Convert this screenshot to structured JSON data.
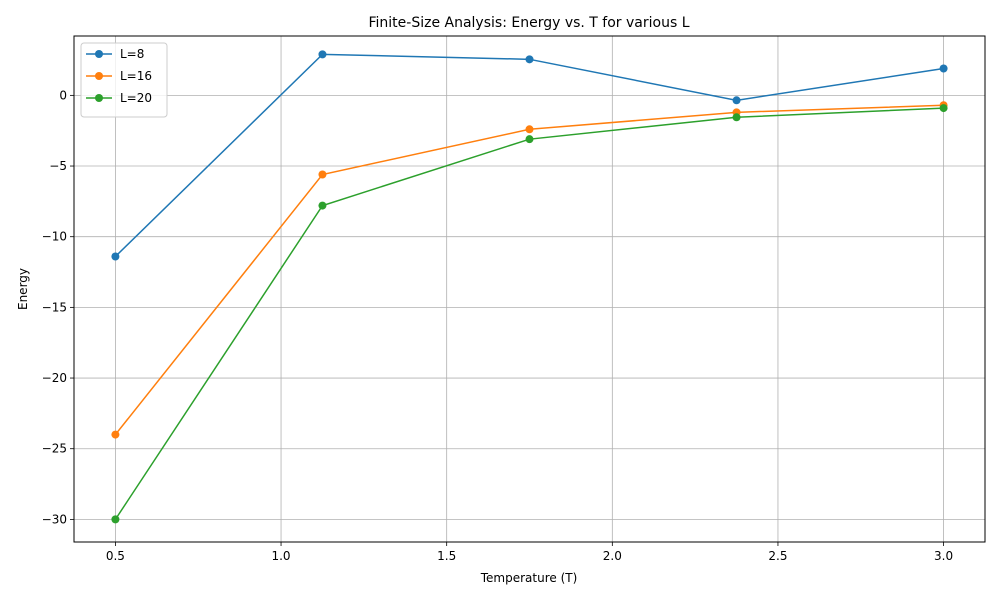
{
  "chart_data": {
    "type": "line",
    "title": "Finite-Size Analysis: Energy vs. T for various L",
    "xlabel": "Temperature (T)",
    "ylabel": "Energy",
    "xlim": [
      0.375,
      3.125
    ],
    "ylim": [
      -31.6,
      4.2
    ],
    "xticks": [
      0.5,
      1.0,
      1.5,
      2.0,
      2.5,
      3.0
    ],
    "xtick_labels": [
      "0.5",
      "1.0",
      "1.5",
      "2.0",
      "2.5",
      "3.0"
    ],
    "yticks": [
      0,
      -5,
      -10,
      -15,
      -20,
      -25,
      -30
    ],
    "ytick_labels": [
      "0",
      "−5",
      "−10",
      "−15",
      "−20",
      "−25",
      "−30"
    ],
    "grid": true,
    "legend_position": "top-left",
    "x": [
      0.5,
      1.125,
      1.75,
      2.375,
      3.0
    ],
    "series": [
      {
        "name": "L=8",
        "color": "#1f77b4",
        "values": [
          -11.4,
          2.9,
          2.55,
          -0.35,
          1.9
        ]
      },
      {
        "name": "L=16",
        "color": "#ff7f0e",
        "values": [
          -24.0,
          -5.6,
          -2.4,
          -1.2,
          -0.7
        ]
      },
      {
        "name": "L=20",
        "color": "#2ca02c",
        "values": [
          -30.0,
          -7.8,
          -3.1,
          -1.55,
          -0.9
        ]
      }
    ]
  }
}
